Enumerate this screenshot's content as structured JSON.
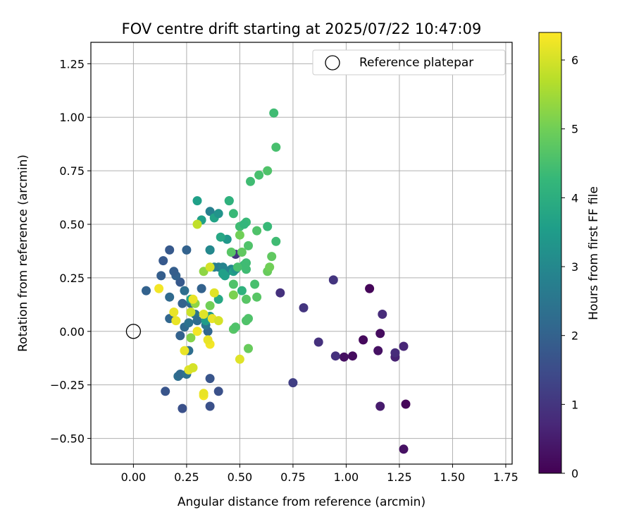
{
  "chart_data": {
    "type": "scatter",
    "title": "FOV centre drift starting at 2025/07/22 10:47:09",
    "xlabel": "Angular distance from reference (arcmin)",
    "ylabel": "Rotation from reference (arcmin)",
    "xlim": [
      -0.2,
      1.78
    ],
    "ylim": [
      -0.62,
      1.35
    ],
    "xticks": [
      "0.00",
      "0.25",
      "0.50",
      "0.75",
      "1.00",
      "1.25",
      "1.50",
      "1.75"
    ],
    "yticks": [
      "−0.50",
      "−0.25",
      "0.00",
      "0.25",
      "0.50",
      "0.75",
      "1.00",
      "1.25"
    ],
    "grid": true,
    "legend": {
      "position": "top-right",
      "entries": [
        "Reference platepar"
      ]
    },
    "reference": {
      "x": 0.0,
      "y": 0.0
    },
    "colorbar": {
      "label": "Hours from first FF file",
      "min": 0,
      "max": 6.4,
      "ticks": [
        "0",
        "1",
        "2",
        "3",
        "4",
        "5",
        "6"
      ],
      "colormap": "viridis"
    },
    "series": [
      {
        "points": [
          [
            1.27,
            -0.55,
            0.3
          ],
          [
            1.28,
            -0.34,
            0.1
          ],
          [
            1.16,
            -0.35,
            0.5
          ],
          [
            1.23,
            -0.12,
            0.6
          ],
          [
            1.23,
            -0.1,
            0.8
          ],
          [
            1.27,
            -0.07,
            0.7
          ],
          [
            1.15,
            -0.09,
            0.3
          ],
          [
            1.16,
            -0.01,
            0.2
          ],
          [
            1.17,
            0.08,
            0.8
          ],
          [
            1.11,
            0.2,
            0.1
          ],
          [
            1.08,
            -0.04,
            0.15
          ],
          [
            1.03,
            -0.115,
            0.2
          ],
          [
            0.99,
            -0.12,
            0.25
          ],
          [
            0.95,
            -0.115,
            0.9
          ],
          [
            0.87,
            -0.05,
            0.9
          ],
          [
            0.94,
            0.24,
            1.0
          ],
          [
            0.8,
            0.11,
            1.0
          ],
          [
            0.69,
            0.18,
            0.9
          ],
          [
            0.75,
            -0.24,
            1.2
          ],
          [
            0.48,
            0.36,
            1.0
          ],
          [
            0.23,
            -0.36,
            1.6
          ],
          [
            0.36,
            -0.35,
            1.6
          ],
          [
            0.4,
            -0.28,
            1.6
          ],
          [
            0.36,
            -0.22,
            1.7
          ],
          [
            0.15,
            -0.28,
            1.7
          ],
          [
            0.21,
            -0.21,
            2.3
          ],
          [
            0.22,
            -0.2,
            2.2
          ],
          [
            0.25,
            -0.2,
            2.4
          ],
          [
            0.26,
            -0.09,
            2.3
          ],
          [
            0.22,
            -0.02,
            2.0
          ],
          [
            0.24,
            0.02,
            2.2
          ],
          [
            0.26,
            0.04,
            2.4
          ],
          [
            0.23,
            0.13,
            2.0
          ],
          [
            0.27,
            0.13,
            2.2
          ],
          [
            0.29,
            0.08,
            2.5
          ],
          [
            0.3,
            0.05,
            2.3
          ],
          [
            0.17,
            0.06,
            2.1
          ],
          [
            0.17,
            0.16,
            2.2
          ],
          [
            0.22,
            0.23,
            1.8
          ],
          [
            0.2,
            0.26,
            2.0
          ],
          [
            0.19,
            0.28,
            1.9
          ],
          [
            0.13,
            0.26,
            1.9
          ],
          [
            0.14,
            0.33,
            1.8
          ],
          [
            0.17,
            0.38,
            1.8
          ],
          [
            0.06,
            0.19,
            2.0
          ],
          [
            0.24,
            0.19,
            2.3
          ],
          [
            0.25,
            0.38,
            2.0
          ],
          [
            0.32,
            0.2,
            2.0
          ],
          [
            0.35,
            0.0,
            2.1
          ],
          [
            0.34,
            0.03,
            2.5
          ],
          [
            0.38,
            0.3,
            2.8
          ],
          [
            0.4,
            0.3,
            2.7
          ],
          [
            0.42,
            0.3,
            2.9
          ],
          [
            0.44,
            0.28,
            2.9
          ],
          [
            0.46,
            0.29,
            2.9
          ],
          [
            0.36,
            0.38,
            2.8
          ],
          [
            0.36,
            0.56,
            2.8
          ],
          [
            0.36,
            0.38,
            3.0
          ],
          [
            0.3,
            0.61,
            3.6
          ],
          [
            0.32,
            0.52,
            3.6
          ],
          [
            0.38,
            0.53,
            3.7
          ],
          [
            0.4,
            0.55,
            3.3
          ],
          [
            0.44,
            0.43,
            3.4
          ],
          [
            0.41,
            0.44,
            3.8
          ],
          [
            0.45,
            0.61,
            3.9
          ],
          [
            0.47,
            0.28,
            3.6
          ],
          [
            0.48,
            0.29,
            3.3
          ],
          [
            0.43,
            0.26,
            3.6
          ],
          [
            0.36,
            0.07,
            3.4
          ],
          [
            0.34,
            0.05,
            3.5
          ],
          [
            0.4,
            0.15,
            3.8
          ],
          [
            0.27,
            0.15,
            3.7
          ],
          [
            0.42,
            0.27,
            3.6
          ],
          [
            0.45,
            0.61,
            4.1
          ],
          [
            0.47,
            0.55,
            4.3
          ],
          [
            0.5,
            0.49,
            4.4
          ],
          [
            0.53,
            0.51,
            4.3
          ],
          [
            0.52,
            0.5,
            4.2
          ],
          [
            0.55,
            0.7,
            4.4
          ],
          [
            0.59,
            0.73,
            4.5
          ],
          [
            0.63,
            0.75,
            4.6
          ],
          [
            0.66,
            1.02,
            4.4
          ],
          [
            0.67,
            0.86,
            4.5
          ],
          [
            0.63,
            0.49,
            4.3
          ],
          [
            0.67,
            0.42,
            4.4
          ],
          [
            0.58,
            0.47,
            4.6
          ],
          [
            0.54,
            0.4,
            4.6
          ],
          [
            0.51,
            0.37,
            4.8
          ],
          [
            0.46,
            0.37,
            4.7
          ],
          [
            0.52,
            0.31,
            4.3
          ],
          [
            0.53,
            0.32,
            4.4
          ],
          [
            0.53,
            0.29,
            4.4
          ],
          [
            0.51,
            0.19,
            4.1
          ],
          [
            0.53,
            0.15,
            4.7
          ],
          [
            0.47,
            0.22,
            4.6
          ],
          [
            0.49,
            0.3,
            4.5
          ],
          [
            0.57,
            0.22,
            4.5
          ],
          [
            0.58,
            0.16,
            4.7
          ],
          [
            0.63,
            0.28,
            4.9
          ],
          [
            0.64,
            0.3,
            5.0
          ],
          [
            0.65,
            0.35,
            4.8
          ],
          [
            0.53,
            0.05,
            4.6
          ],
          [
            0.54,
            0.06,
            4.6
          ],
          [
            0.47,
            0.01,
            4.7
          ],
          [
            0.48,
            0.02,
            4.6
          ],
          [
            0.54,
            -0.08,
            4.9
          ],
          [
            0.5,
            0.45,
            5.0
          ],
          [
            0.36,
            0.12,
            5.0
          ],
          [
            0.47,
            0.17,
            5.1
          ],
          [
            0.27,
            -0.03,
            5.2
          ],
          [
            0.29,
            0.13,
            5.3
          ],
          [
            0.33,
            0.28,
            5.3
          ],
          [
            0.3,
            0.5,
            5.8
          ],
          [
            0.36,
            0.3,
            6.0
          ],
          [
            0.38,
            0.18,
            6.1
          ],
          [
            0.37,
            0.06,
            6.2
          ],
          [
            0.4,
            0.05,
            6.0
          ],
          [
            0.36,
            -0.06,
            6.3
          ],
          [
            0.35,
            -0.04,
            6.2
          ],
          [
            0.33,
            0.08,
            6.1
          ],
          [
            0.27,
            0.09,
            5.9
          ],
          [
            0.28,
            0.15,
            6.2
          ],
          [
            0.19,
            0.09,
            6.2
          ],
          [
            0.2,
            0.05,
            6.2
          ],
          [
            0.12,
            0.2,
            6.3
          ],
          [
            0.24,
            -0.09,
            6.2
          ],
          [
            0.26,
            -0.18,
            6.1
          ],
          [
            0.28,
            -0.17,
            6.0
          ],
          [
            0.3,
            0.0,
            6.3
          ],
          [
            0.33,
            -0.3,
            6.3
          ],
          [
            0.33,
            -0.29,
            6.2
          ],
          [
            0.5,
            -0.13,
            6.1
          ]
        ]
      }
    ]
  }
}
